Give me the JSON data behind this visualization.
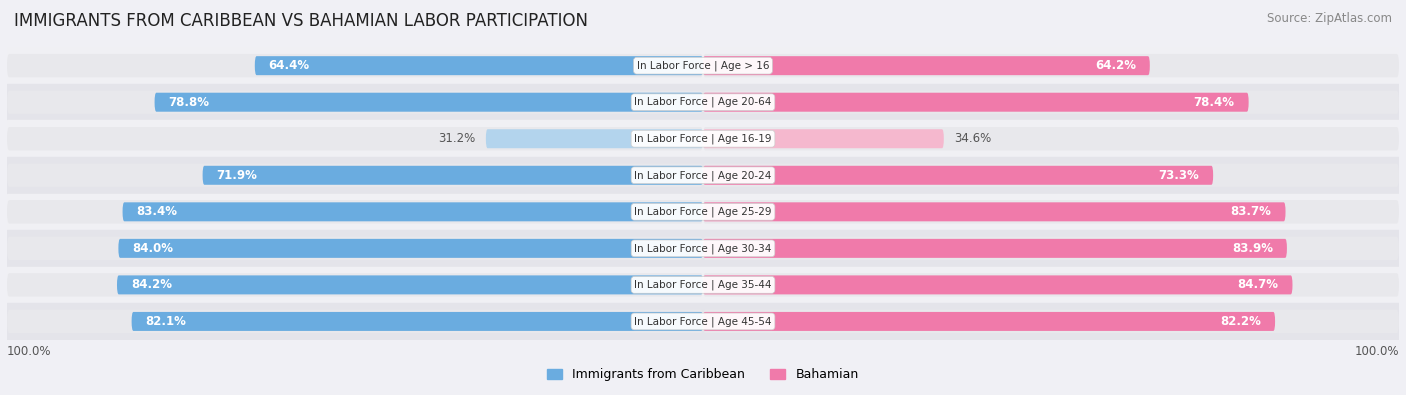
{
  "title": "IMMIGRANTS FROM CARIBBEAN VS BAHAMIAN LABOR PARTICIPATION",
  "source": "Source: ZipAtlas.com",
  "categories": [
    "In Labor Force | Age > 16",
    "In Labor Force | Age 20-64",
    "In Labor Force | Age 16-19",
    "In Labor Force | Age 20-24",
    "In Labor Force | Age 25-29",
    "In Labor Force | Age 30-34",
    "In Labor Force | Age 35-44",
    "In Labor Force | Age 45-54"
  ],
  "caribbean_values": [
    64.4,
    78.8,
    31.2,
    71.9,
    83.4,
    84.0,
    84.2,
    82.1
  ],
  "bahamian_values": [
    64.2,
    78.4,
    34.6,
    73.3,
    83.7,
    83.9,
    84.7,
    82.2
  ],
  "caribbean_color": "#6aace0",
  "caribbean_color_light": "#b3d4ed",
  "bahamian_color": "#f07aaa",
  "bahamian_color_light": "#f5b8ce",
  "bg_bar_color": "#e8e8ec",
  "row_bg_even": "#f0f0f4",
  "row_bg_odd": "#e4e4ea",
  "label_color_dark": "#555555",
  "label_color_white": "#ffffff",
  "max_value": 100.0,
  "legend_caribbean": "Immigrants from Caribbean",
  "legend_bahamian": "Bahamian",
  "title_fontsize": 12,
  "label_fontsize": 8.5,
  "bar_height": 0.52,
  "figsize": [
    14.06,
    3.95
  ],
  "dpi": 100
}
